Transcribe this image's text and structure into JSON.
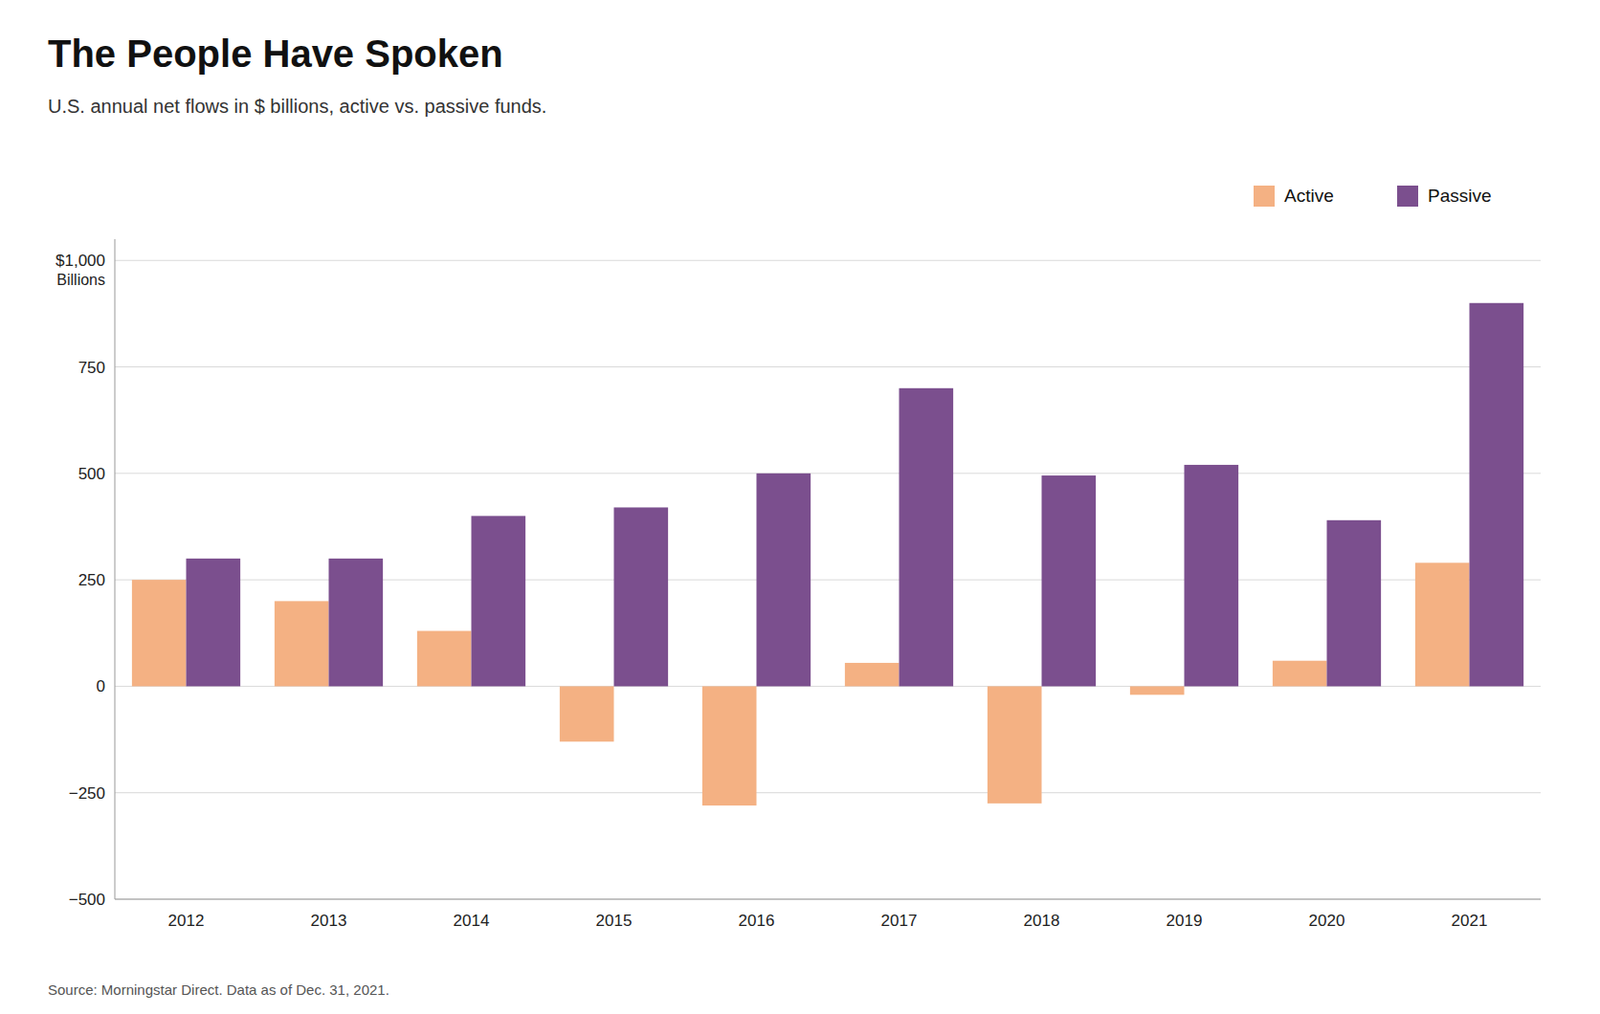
{
  "chart_data": {
    "type": "bar",
    "title": "The People Have Spoken",
    "subtitle": "U.S. annual net flows in $ billions, active vs. passive funds.",
    "source": "Source: Morningstar Direct. Data as of Dec. 31, 2021.",
    "y_label": "Billions",
    "categories": [
      "2012",
      "2013",
      "2014",
      "2015",
      "2016",
      "2017",
      "2018",
      "2019",
      "2020",
      "2021"
    ],
    "series": [
      {
        "name": "Active",
        "color": "#f4b183",
        "values": [
          250,
          200,
          130,
          -130,
          -280,
          55,
          -275,
          -20,
          60,
          290
        ]
      },
      {
        "name": "Passive",
        "color": "#7b4f8e",
        "values": [
          300,
          300,
          400,
          420,
          500,
          700,
          495,
          520,
          390,
          900
        ]
      }
    ],
    "ylim": [
      -500,
      1050
    ],
    "yticks": [
      {
        "value": -500,
        "label": "−500"
      },
      {
        "value": -250,
        "label": "−250"
      },
      0,
      250,
      500,
      750,
      {
        "value": 1000,
        "label": "$1,000"
      }
    ],
    "grid": true,
    "legend": "upper right"
  }
}
